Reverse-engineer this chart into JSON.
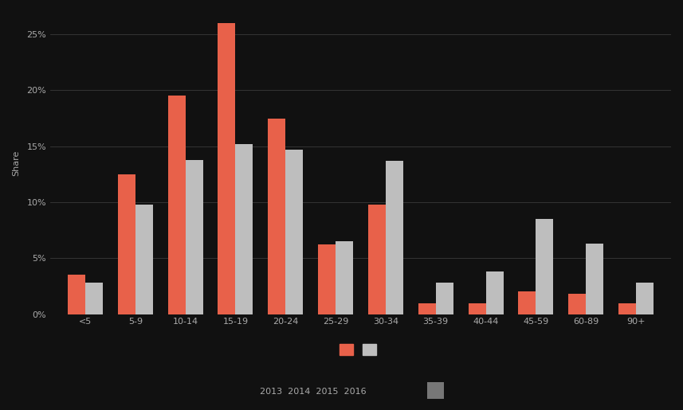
{
  "categories": [
    "<5",
    "5-9",
    "10-14",
    "15-19",
    "20-24",
    "25-29",
    "30-34",
    "35-39",
    "40-44",
    "45-59",
    "60-89",
    "90+"
  ],
  "tallahassee": [
    3.5,
    12.5,
    19.5,
    26.0,
    17.5,
    6.2,
    9.8,
    1.0,
    1.0,
    2.0,
    1.8,
    1.0
  ],
  "us_avg": [
    2.8,
    9.8,
    13.8,
    15.2,
    14.7,
    6.5,
    13.7,
    2.8,
    3.8,
    8.5,
    6.3,
    2.8
  ],
  "bar_color_tallahassee": "#E8614A",
  "bar_color_us": "#BEBEBE",
  "background_color": "#111111",
  "text_color": "#aaaaaa",
  "grid_color": "#3a3a3a",
  "ylabel": "Share",
  "ylim": [
    0,
    27
  ],
  "yticks": [
    0,
    5,
    10,
    15,
    20,
    25
  ],
  "bar_width": 0.35,
  "axis_fontsize": 8,
  "legend_text": "2013  2014  2015  2016",
  "legend_square_color": "#777777"
}
